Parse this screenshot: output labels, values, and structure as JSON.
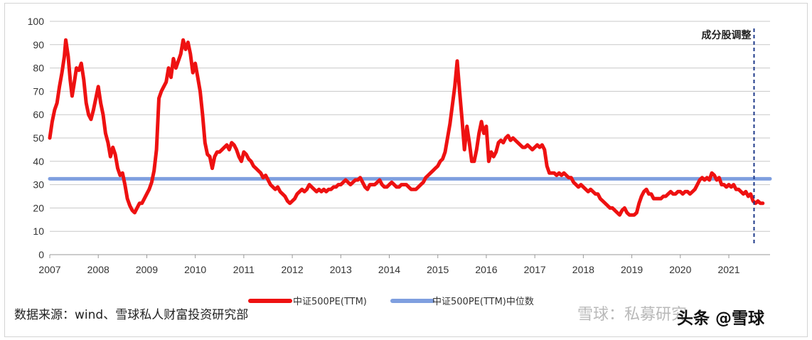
{
  "chart_data": {
    "type": "line",
    "x_ticks": [
      "2007",
      "2008",
      "2009",
      "2010",
      "2011",
      "2012",
      "2013",
      "2014",
      "2015",
      "2016",
      "2017",
      "2018",
      "2019",
      "2020",
      "2021"
    ],
    "y_ticks": [
      "100",
      "90",
      "80",
      "70",
      "60",
      "50",
      "40",
      "30",
      "20",
      "10",
      "0"
    ],
    "ylim": [
      0,
      100
    ],
    "xlim": [
      2007,
      2021.85
    ],
    "grid": "horizontal",
    "legend_position": "bottom",
    "series": [
      {
        "name": "中证500PE(TTM)",
        "color": "#ee1111",
        "points": [
          [
            2007.0,
            50
          ],
          [
            2007.05,
            57
          ],
          [
            2007.1,
            62
          ],
          [
            2007.15,
            65
          ],
          [
            2007.2,
            72
          ],
          [
            2007.25,
            78
          ],
          [
            2007.3,
            85
          ],
          [
            2007.33,
            92
          ],
          [
            2007.38,
            85
          ],
          [
            2007.42,
            75
          ],
          [
            2007.46,
            68
          ],
          [
            2007.5,
            73
          ],
          [
            2007.55,
            80
          ],
          [
            2007.6,
            79
          ],
          [
            2007.65,
            82
          ],
          [
            2007.7,
            75
          ],
          [
            2007.75,
            65
          ],
          [
            2007.8,
            60
          ],
          [
            2007.85,
            58
          ],
          [
            2007.9,
            62
          ],
          [
            2007.95,
            67
          ],
          [
            2008.0,
            72
          ],
          [
            2008.05,
            65
          ],
          [
            2008.1,
            60
          ],
          [
            2008.15,
            52
          ],
          [
            2008.2,
            48
          ],
          [
            2008.25,
            42
          ],
          [
            2008.3,
            46
          ],
          [
            2008.35,
            43
          ],
          [
            2008.4,
            37
          ],
          [
            2008.45,
            34
          ],
          [
            2008.5,
            35
          ],
          [
            2008.55,
            30
          ],
          [
            2008.6,
            24
          ],
          [
            2008.65,
            21
          ],
          [
            2008.7,
            19
          ],
          [
            2008.75,
            18
          ],
          [
            2008.8,
            20
          ],
          [
            2008.85,
            22
          ],
          [
            2008.9,
            22
          ],
          [
            2008.95,
            24
          ],
          [
            2009.0,
            26
          ],
          [
            2009.05,
            28
          ],
          [
            2009.1,
            31
          ],
          [
            2009.15,
            36
          ],
          [
            2009.2,
            45
          ],
          [
            2009.25,
            67
          ],
          [
            2009.3,
            70
          ],
          [
            2009.35,
            72
          ],
          [
            2009.4,
            74
          ],
          [
            2009.45,
            80
          ],
          [
            2009.5,
            76
          ],
          [
            2009.55,
            84
          ],
          [
            2009.6,
            80
          ],
          [
            2009.65,
            83
          ],
          [
            2009.7,
            86
          ],
          [
            2009.75,
            92
          ],
          [
            2009.8,
            88
          ],
          [
            2009.85,
            91
          ],
          [
            2009.9,
            86
          ],
          [
            2009.95,
            78
          ],
          [
            2010.0,
            82
          ],
          [
            2010.05,
            76
          ],
          [
            2010.1,
            70
          ],
          [
            2010.15,
            60
          ],
          [
            2010.2,
            48
          ],
          [
            2010.25,
            43
          ],
          [
            2010.3,
            42
          ],
          [
            2010.35,
            37
          ],
          [
            2010.4,
            42
          ],
          [
            2010.45,
            44
          ],
          [
            2010.5,
            44
          ],
          [
            2010.55,
            45
          ],
          [
            2010.6,
            46
          ],
          [
            2010.65,
            47
          ],
          [
            2010.7,
            45
          ],
          [
            2010.75,
            48
          ],
          [
            2010.8,
            47
          ],
          [
            2010.85,
            45
          ],
          [
            2010.9,
            42
          ],
          [
            2010.95,
            40
          ],
          [
            2011.0,
            44
          ],
          [
            2011.05,
            43
          ],
          [
            2011.1,
            41
          ],
          [
            2011.15,
            40
          ],
          [
            2011.2,
            38
          ],
          [
            2011.25,
            37
          ],
          [
            2011.3,
            36
          ],
          [
            2011.35,
            35
          ],
          [
            2011.4,
            33
          ],
          [
            2011.45,
            34
          ],
          [
            2011.5,
            32
          ],
          [
            2011.55,
            30
          ],
          [
            2011.6,
            29
          ],
          [
            2011.65,
            28
          ],
          [
            2011.7,
            29
          ],
          [
            2011.75,
            27
          ],
          [
            2011.8,
            26
          ],
          [
            2011.85,
            25
          ],
          [
            2011.9,
            23
          ],
          [
            2011.95,
            22
          ],
          [
            2012.0,
            23
          ],
          [
            2012.05,
            24
          ],
          [
            2012.1,
            26
          ],
          [
            2012.15,
            27
          ],
          [
            2012.2,
            28
          ],
          [
            2012.25,
            27
          ],
          [
            2012.3,
            28
          ],
          [
            2012.35,
            30
          ],
          [
            2012.4,
            29
          ],
          [
            2012.45,
            28
          ],
          [
            2012.5,
            27
          ],
          [
            2012.55,
            28
          ],
          [
            2012.6,
            27
          ],
          [
            2012.65,
            28
          ],
          [
            2012.7,
            27
          ],
          [
            2012.75,
            28
          ],
          [
            2012.8,
            28
          ],
          [
            2012.85,
            29
          ],
          [
            2012.9,
            29
          ],
          [
            2012.95,
            30
          ],
          [
            2013.0,
            30
          ],
          [
            2013.05,
            31
          ],
          [
            2013.1,
            32
          ],
          [
            2013.15,
            31
          ],
          [
            2013.2,
            30
          ],
          [
            2013.25,
            31
          ],
          [
            2013.3,
            32
          ],
          [
            2013.35,
            32
          ],
          [
            2013.4,
            33
          ],
          [
            2013.45,
            31
          ],
          [
            2013.5,
            29
          ],
          [
            2013.55,
            28
          ],
          [
            2013.6,
            30
          ],
          [
            2013.65,
            30
          ],
          [
            2013.7,
            30
          ],
          [
            2013.75,
            31
          ],
          [
            2013.8,
            32
          ],
          [
            2013.85,
            30
          ],
          [
            2013.9,
            29
          ],
          [
            2013.95,
            29
          ],
          [
            2014.0,
            30
          ],
          [
            2014.05,
            31
          ],
          [
            2014.1,
            30
          ],
          [
            2014.15,
            29
          ],
          [
            2014.2,
            29
          ],
          [
            2014.25,
            30
          ],
          [
            2014.3,
            30
          ],
          [
            2014.35,
            30
          ],
          [
            2014.4,
            29
          ],
          [
            2014.45,
            28
          ],
          [
            2014.5,
            28
          ],
          [
            2014.55,
            28
          ],
          [
            2014.6,
            29
          ],
          [
            2014.65,
            30
          ],
          [
            2014.7,
            31
          ],
          [
            2014.75,
            33
          ],
          [
            2014.8,
            34
          ],
          [
            2014.85,
            35
          ],
          [
            2014.9,
            36
          ],
          [
            2014.95,
            37
          ],
          [
            2015.0,
            38
          ],
          [
            2015.05,
            40
          ],
          [
            2015.1,
            41
          ],
          [
            2015.15,
            44
          ],
          [
            2015.2,
            50
          ],
          [
            2015.25,
            56
          ],
          [
            2015.3,
            64
          ],
          [
            2015.35,
            72
          ],
          [
            2015.4,
            83
          ],
          [
            2015.45,
            70
          ],
          [
            2015.5,
            58
          ],
          [
            2015.55,
            45
          ],
          [
            2015.6,
            55
          ],
          [
            2015.65,
            48
          ],
          [
            2015.7,
            40
          ],
          [
            2015.75,
            40
          ],
          [
            2015.8,
            45
          ],
          [
            2015.85,
            52
          ],
          [
            2015.9,
            57
          ],
          [
            2015.95,
            52
          ],
          [
            2016.0,
            55
          ],
          [
            2016.05,
            40
          ],
          [
            2016.1,
            44
          ],
          [
            2016.15,
            42
          ],
          [
            2016.2,
            44
          ],
          [
            2016.25,
            48
          ],
          [
            2016.3,
            49
          ],
          [
            2016.35,
            48
          ],
          [
            2016.4,
            50
          ],
          [
            2016.45,
            51
          ],
          [
            2016.5,
            49
          ],
          [
            2016.55,
            50
          ],
          [
            2016.6,
            49
          ],
          [
            2016.65,
            48
          ],
          [
            2016.7,
            47
          ],
          [
            2016.75,
            46
          ],
          [
            2016.8,
            46
          ],
          [
            2016.85,
            47
          ],
          [
            2016.9,
            46
          ],
          [
            2016.95,
            45
          ],
          [
            2017.0,
            46
          ],
          [
            2017.05,
            47
          ],
          [
            2017.1,
            46
          ],
          [
            2017.15,
            47
          ],
          [
            2017.2,
            45
          ],
          [
            2017.25,
            38
          ],
          [
            2017.3,
            35
          ],
          [
            2017.35,
            35
          ],
          [
            2017.4,
            35
          ],
          [
            2017.45,
            34
          ],
          [
            2017.5,
            35
          ],
          [
            2017.55,
            34
          ],
          [
            2017.6,
            35
          ],
          [
            2017.65,
            34
          ],
          [
            2017.7,
            33
          ],
          [
            2017.75,
            33
          ],
          [
            2017.8,
            31
          ],
          [
            2017.85,
            30
          ],
          [
            2017.9,
            29
          ],
          [
            2017.95,
            30
          ],
          [
            2018.0,
            29
          ],
          [
            2018.05,
            28
          ],
          [
            2018.1,
            27
          ],
          [
            2018.15,
            28
          ],
          [
            2018.2,
            27
          ],
          [
            2018.25,
            26
          ],
          [
            2018.3,
            26
          ],
          [
            2018.35,
            24
          ],
          [
            2018.4,
            23
          ],
          [
            2018.45,
            22
          ],
          [
            2018.5,
            21
          ],
          [
            2018.55,
            20
          ],
          [
            2018.6,
            20
          ],
          [
            2018.65,
            19
          ],
          [
            2018.7,
            18
          ],
          [
            2018.75,
            17
          ],
          [
            2018.8,
            19
          ],
          [
            2018.85,
            20
          ],
          [
            2018.9,
            18
          ],
          [
            2018.95,
            17
          ],
          [
            2019.0,
            17
          ],
          [
            2019.05,
            17
          ],
          [
            2019.1,
            18
          ],
          [
            2019.15,
            22
          ],
          [
            2019.2,
            25
          ],
          [
            2019.25,
            27
          ],
          [
            2019.3,
            28
          ],
          [
            2019.35,
            26
          ],
          [
            2019.4,
            26
          ],
          [
            2019.45,
            24
          ],
          [
            2019.5,
            24
          ],
          [
            2019.55,
            24
          ],
          [
            2019.6,
            24
          ],
          [
            2019.65,
            25
          ],
          [
            2019.7,
            25
          ],
          [
            2019.75,
            26
          ],
          [
            2019.8,
            27
          ],
          [
            2019.85,
            26
          ],
          [
            2019.9,
            26
          ],
          [
            2019.95,
            27
          ],
          [
            2020.0,
            27
          ],
          [
            2020.05,
            26
          ],
          [
            2020.1,
            27
          ],
          [
            2020.15,
            27
          ],
          [
            2020.2,
            26
          ],
          [
            2020.25,
            27
          ],
          [
            2020.3,
            28
          ],
          [
            2020.35,
            30
          ],
          [
            2020.4,
            32
          ],
          [
            2020.45,
            33
          ],
          [
            2020.5,
            32
          ],
          [
            2020.55,
            33
          ],
          [
            2020.6,
            32
          ],
          [
            2020.65,
            35
          ],
          [
            2020.7,
            34
          ],
          [
            2020.75,
            32
          ],
          [
            2020.8,
            33
          ],
          [
            2020.85,
            30
          ],
          [
            2020.9,
            30
          ],
          [
            2020.95,
            29
          ],
          [
            2021.0,
            30
          ],
          [
            2021.05,
            29
          ],
          [
            2021.1,
            30
          ],
          [
            2021.15,
            28
          ],
          [
            2021.2,
            28
          ],
          [
            2021.25,
            27
          ],
          [
            2021.3,
            26
          ],
          [
            2021.35,
            27
          ],
          [
            2021.4,
            25
          ],
          [
            2021.45,
            26
          ],
          [
            2021.5,
            23
          ],
          [
            2021.55,
            22
          ],
          [
            2021.6,
            23
          ],
          [
            2021.65,
            22
          ],
          [
            2021.7,
            22
          ]
        ]
      },
      {
        "name": "中证500PE(TTM)中位数",
        "color": "#7f9fdf",
        "points": [
          [
            2007.0,
            32.5
          ],
          [
            2021.85,
            32.5
          ]
        ]
      }
    ],
    "annotations": [
      {
        "text": "成分股调整",
        "x": 2021.52
      }
    ]
  },
  "source_text": "数据来源：wind、雪球私人财富投资研究部",
  "watermarks": {
    "xueqiu": "雪球：私募研究",
    "toutiao": "头条 @雪球"
  }
}
